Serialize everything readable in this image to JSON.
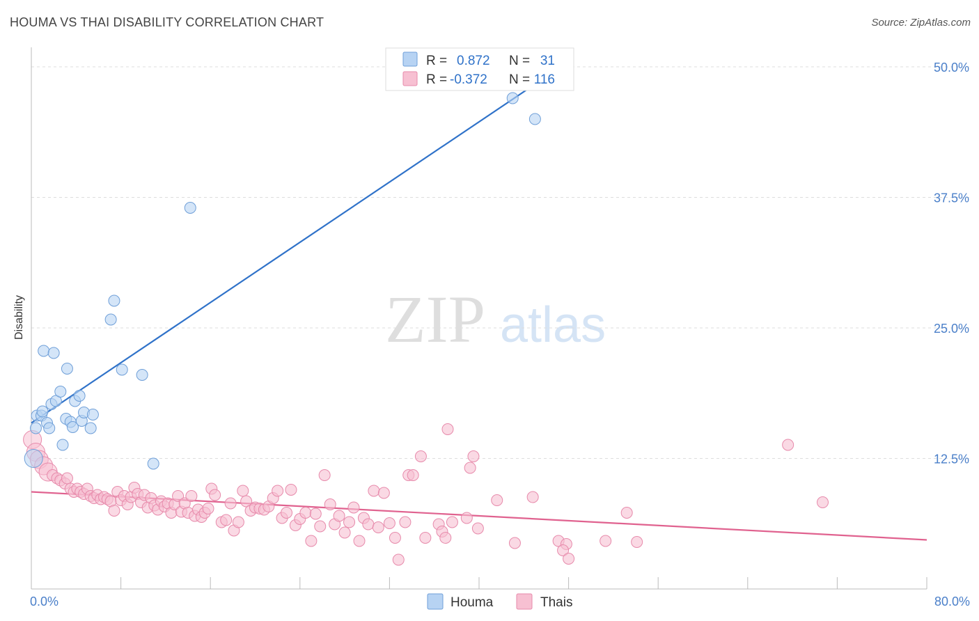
{
  "title": "HOUMA VS THAI DISABILITY CORRELATION CHART",
  "source": "Source: ZipAtlas.com",
  "watermark": {
    "zip": "ZIP",
    "atlas": "atlas"
  },
  "colors": {
    "houma_fill": "#b7d3f3",
    "houma_stroke": "#6f9fd8",
    "houma_line": "#2f72c9",
    "thai_fill": "#f7c0d2",
    "thai_stroke": "#e78aab",
    "thai_line": "#e0628f",
    "value_text": "#2f72c9",
    "grid": "#dddddd"
  },
  "legend_top": {
    "rows": [
      {
        "r_label": "R =",
        "r_value": "0.872",
        "n_label": "N =",
        "n_value": "31"
      },
      {
        "r_label": "R =",
        "r_value": "-0.372",
        "n_label": "N =",
        "n_value": "116"
      }
    ]
  },
  "legend_bottom": {
    "items": [
      "Houma",
      "Thais"
    ]
  },
  "chart_data": {
    "type": "scatter",
    "title": "HOUMA VS THAI DISABILITY CORRELATION CHART",
    "xlabel": "",
    "ylabel": "Disability",
    "xlim": [
      0,
      80
    ],
    "ylim": [
      0,
      50
    ],
    "x_tick_labels": [
      "0.0%",
      "80.0%"
    ],
    "y_ticks": [
      12.5,
      25.0,
      37.5,
      50.0
    ],
    "y_tick_labels": [
      "12.5%",
      "25.0%",
      "37.5%",
      "50.0%"
    ],
    "grid": true,
    "legend_position": "bottom",
    "series": [
      {
        "name": "Houma",
        "r": 0.872,
        "n": 31,
        "trend": {
          "x": [
            0,
            48
          ],
          "y": [
            15.9,
            50.5
          ]
        },
        "points": [
          {
            "x": 0.2,
            "y": 12.5,
            "big": true
          },
          {
            "x": 0.4,
            "y": 15.4
          },
          {
            "x": 0.5,
            "y": 16.6
          },
          {
            "x": 0.9,
            "y": 16.6
          },
          {
            "x": 1.0,
            "y": 17.0
          },
          {
            "x": 1.1,
            "y": 22.8
          },
          {
            "x": 1.4,
            "y": 15.9
          },
          {
            "x": 1.6,
            "y": 15.4
          },
          {
            "x": 1.8,
            "y": 17.7
          },
          {
            "x": 2.0,
            "y": 22.6
          },
          {
            "x": 2.2,
            "y": 18.0
          },
          {
            "x": 2.6,
            "y": 18.9
          },
          {
            "x": 2.8,
            "y": 13.8
          },
          {
            "x": 3.1,
            "y": 16.3
          },
          {
            "x": 3.2,
            "y": 21.1
          },
          {
            "x": 3.5,
            "y": 16.0
          },
          {
            "x": 3.7,
            "y": 15.5
          },
          {
            "x": 3.9,
            "y": 18.0
          },
          {
            "x": 4.3,
            "y": 18.5
          },
          {
            "x": 4.5,
            "y": 16.1
          },
          {
            "x": 4.7,
            "y": 16.9
          },
          {
            "x": 5.3,
            "y": 15.4
          },
          {
            "x": 5.5,
            "y": 16.7
          },
          {
            "x": 7.1,
            "y": 25.8
          },
          {
            "x": 7.4,
            "y": 27.6
          },
          {
            "x": 8.1,
            "y": 21.0
          },
          {
            "x": 9.9,
            "y": 20.5
          },
          {
            "x": 10.9,
            "y": 12.0
          },
          {
            "x": 14.2,
            "y": 36.5
          },
          {
            "x": 43.0,
            "y": 47.0
          },
          {
            "x": 45.0,
            "y": 45.0
          }
        ]
      },
      {
        "name": "Thais",
        "r": -0.372,
        "n": 116,
        "trend": {
          "x": [
            0,
            80
          ],
          "y": [
            9.3,
            4.7
          ]
        },
        "points": [
          {
            "x": 0.1,
            "y": 14.3,
            "big": true
          },
          {
            "x": 0.4,
            "y": 13.1,
            "big": true
          },
          {
            "x": 0.7,
            "y": 12.4,
            "big": true
          },
          {
            "x": 1.1,
            "y": 11.8,
            "big": true
          },
          {
            "x": 1.5,
            "y": 11.2,
            "big": true
          },
          {
            "x": 1.9,
            "y": 10.9
          },
          {
            "x": 2.3,
            "y": 10.6
          },
          {
            "x": 2.6,
            "y": 10.4
          },
          {
            "x": 3.0,
            "y": 10.1
          },
          {
            "x": 3.2,
            "y": 10.6
          },
          {
            "x": 3.5,
            "y": 9.6
          },
          {
            "x": 3.8,
            "y": 9.3
          },
          {
            "x": 4.1,
            "y": 9.6
          },
          {
            "x": 4.4,
            "y": 9.3
          },
          {
            "x": 4.7,
            "y": 9.1
          },
          {
            "x": 5.0,
            "y": 9.6
          },
          {
            "x": 5.3,
            "y": 8.9
          },
          {
            "x": 5.6,
            "y": 8.7
          },
          {
            "x": 5.9,
            "y": 9.0
          },
          {
            "x": 6.2,
            "y": 8.6
          },
          {
            "x": 6.5,
            "y": 8.8
          },
          {
            "x": 6.8,
            "y": 8.6
          },
          {
            "x": 7.1,
            "y": 8.4
          },
          {
            "x": 7.4,
            "y": 7.5
          },
          {
            "x": 7.7,
            "y": 9.3
          },
          {
            "x": 8.0,
            "y": 8.5
          },
          {
            "x": 8.3,
            "y": 8.9
          },
          {
            "x": 8.6,
            "y": 8.1
          },
          {
            "x": 8.9,
            "y": 8.8
          },
          {
            "x": 9.2,
            "y": 9.7
          },
          {
            "x": 9.5,
            "y": 9.1
          },
          {
            "x": 9.8,
            "y": 8.3
          },
          {
            "x": 10.1,
            "y": 9.0
          },
          {
            "x": 10.4,
            "y": 7.8
          },
          {
            "x": 10.7,
            "y": 8.7
          },
          {
            "x": 11.0,
            "y": 8.0
          },
          {
            "x": 11.3,
            "y": 7.6
          },
          {
            "x": 11.6,
            "y": 8.4
          },
          {
            "x": 11.9,
            "y": 7.9
          },
          {
            "x": 12.2,
            "y": 8.2
          },
          {
            "x": 12.5,
            "y": 7.3
          },
          {
            "x": 12.8,
            "y": 8.1
          },
          {
            "x": 13.1,
            "y": 8.9
          },
          {
            "x": 13.4,
            "y": 7.4
          },
          {
            "x": 13.7,
            "y": 8.2
          },
          {
            "x": 14.0,
            "y": 7.3
          },
          {
            "x": 14.3,
            "y": 8.9
          },
          {
            "x": 14.6,
            "y": 7.0
          },
          {
            "x": 14.9,
            "y": 7.6
          },
          {
            "x": 15.2,
            "y": 6.9
          },
          {
            "x": 15.5,
            "y": 7.3
          },
          {
            "x": 15.8,
            "y": 7.7
          },
          {
            "x": 16.1,
            "y": 9.6
          },
          {
            "x": 16.4,
            "y": 9.0
          },
          {
            "x": 17.0,
            "y": 6.4
          },
          {
            "x": 17.4,
            "y": 6.6
          },
          {
            "x": 17.8,
            "y": 8.2
          },
          {
            "x": 18.1,
            "y": 5.6
          },
          {
            "x": 18.5,
            "y": 6.4
          },
          {
            "x": 18.9,
            "y": 9.4
          },
          {
            "x": 19.2,
            "y": 8.4
          },
          {
            "x": 19.6,
            "y": 7.5
          },
          {
            "x": 20.0,
            "y": 7.8
          },
          {
            "x": 20.4,
            "y": 7.7
          },
          {
            "x": 20.8,
            "y": 7.6
          },
          {
            "x": 21.2,
            "y": 7.9
          },
          {
            "x": 21.6,
            "y": 8.7
          },
          {
            "x": 22.0,
            "y": 9.4
          },
          {
            "x": 22.4,
            "y": 6.8
          },
          {
            "x": 22.8,
            "y": 7.3
          },
          {
            "x": 23.2,
            "y": 9.5
          },
          {
            "x": 23.6,
            "y": 6.1
          },
          {
            "x": 24.0,
            "y": 6.7
          },
          {
            "x": 24.5,
            "y": 7.3
          },
          {
            "x": 25.0,
            "y": 4.6
          },
          {
            "x": 25.4,
            "y": 7.2
          },
          {
            "x": 25.8,
            "y": 6.0
          },
          {
            "x": 26.2,
            "y": 10.9
          },
          {
            "x": 26.7,
            "y": 8.1
          },
          {
            "x": 27.1,
            "y": 6.2
          },
          {
            "x": 27.5,
            "y": 7.0
          },
          {
            "x": 28.0,
            "y": 5.4
          },
          {
            "x": 28.4,
            "y": 6.4
          },
          {
            "x": 28.8,
            "y": 7.8
          },
          {
            "x": 29.3,
            "y": 4.6
          },
          {
            "x": 29.7,
            "y": 6.8
          },
          {
            "x": 30.1,
            "y": 6.2
          },
          {
            "x": 30.6,
            "y": 9.4
          },
          {
            "x": 31.0,
            "y": 5.9
          },
          {
            "x": 31.5,
            "y": 9.2
          },
          {
            "x": 32.0,
            "y": 6.3
          },
          {
            "x": 32.5,
            "y": 4.9
          },
          {
            "x": 32.8,
            "y": 2.8
          },
          {
            "x": 33.4,
            "y": 6.4
          },
          {
            "x": 33.7,
            "y": 10.9
          },
          {
            "x": 34.1,
            "y": 10.9
          },
          {
            "x": 34.8,
            "y": 12.7
          },
          {
            "x": 35.2,
            "y": 4.9
          },
          {
            "x": 36.4,
            "y": 6.2
          },
          {
            "x": 36.7,
            "y": 5.5
          },
          {
            "x": 37.0,
            "y": 4.9
          },
          {
            "x": 37.2,
            "y": 15.3
          },
          {
            "x": 37.6,
            "y": 6.4
          },
          {
            "x": 38.9,
            "y": 6.8
          },
          {
            "x": 39.2,
            "y": 11.6
          },
          {
            "x": 39.5,
            "y": 12.7
          },
          {
            "x": 39.9,
            "y": 5.8
          },
          {
            "x": 41.6,
            "y": 8.5
          },
          {
            "x": 43.2,
            "y": 4.4
          },
          {
            "x": 44.8,
            "y": 8.8
          },
          {
            "x": 47.1,
            "y": 4.6
          },
          {
            "x": 47.8,
            "y": 4.3
          },
          {
            "x": 47.5,
            "y": 3.7
          },
          {
            "x": 48.0,
            "y": 2.9
          },
          {
            "x": 51.3,
            "y": 4.6
          },
          {
            "x": 53.2,
            "y": 7.3
          },
          {
            "x": 54.1,
            "y": 4.5
          },
          {
            "x": 67.6,
            "y": 13.8
          },
          {
            "x": 70.7,
            "y": 8.3
          }
        ]
      }
    ]
  }
}
